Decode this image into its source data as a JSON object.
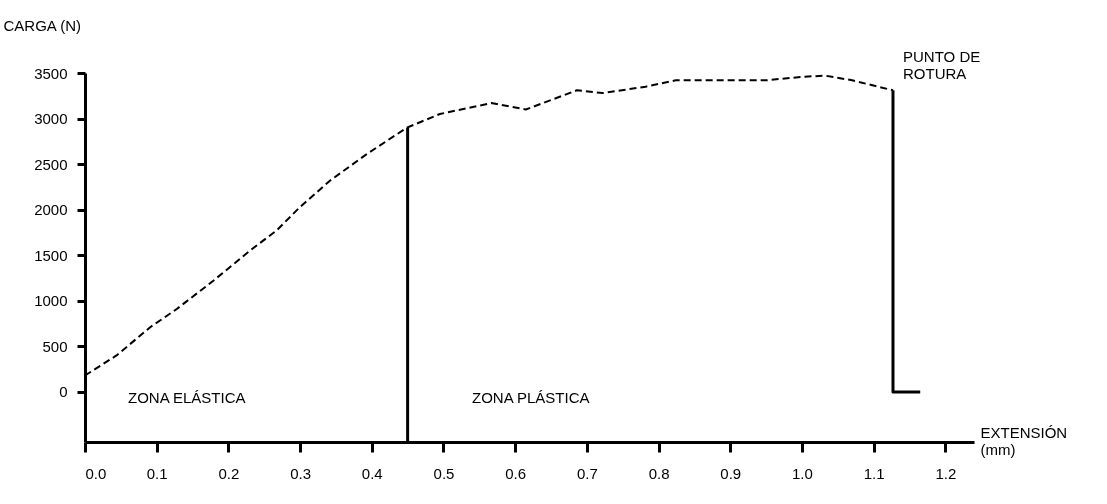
{
  "chart_data": {
    "type": "line",
    "xlabel": "EXTENSIÓN\n(mm)",
    "ylabel": "CARGA (N)",
    "xlim": [
      0,
      1.24
    ],
    "ylim": [
      -550,
      3500
    ],
    "xticks": [
      {
        "value": 0,
        "label": "0.0"
      },
      0.1,
      0.2,
      0.3,
      0.4,
      0.5,
      0.6,
      0.7,
      0.8,
      0.9,
      {
        "value": 1,
        "label": "1.0"
      },
      1.1,
      1.2
    ],
    "yticks": [
      0,
      500,
      1000,
      1500,
      2000,
      2500,
      3000,
      3500
    ],
    "grid": false,
    "marker": "none",
    "series": [
      {
        "color": "#000000",
        "line_style": "dashed",
        "x": [
          0,
          0.044,
          0.091,
          0.128,
          0.179,
          0.23,
          0.267,
          0.3,
          0.342,
          0.393,
          0.449,
          0.495,
          0.567,
          0.615,
          0.686,
          0.722,
          0.782,
          0.824,
          0.914,
          0.95,
          1.004,
          1.033,
          1.07,
          1.127
        ],
        "values": [
          180,
          400,
          710,
          910,
          1220,
          1550,
          1770,
          2030,
          2320,
          2610,
          2900,
          3050,
          3170,
          3100,
          3310,
          3280,
          3350,
          3420,
          3420,
          3420,
          3460,
          3470,
          3420,
          3310
        ]
      },
      {
        "color": "#000000",
        "line_style": "solid",
        "x": [
          1.127,
          1.127,
          1.165
        ],
        "values": [
          3310,
          0,
          0
        ]
      },
      {
        "color": "#000000",
        "line_style": "solid",
        "x": [
          0.45,
          0.45
        ],
        "values": [
          -550,
          2900
        ]
      }
    ],
    "annotations": [
      "ZONA ELÁSTICA",
      "ZONA PLÁSTICA",
      {
        "text": "PUNTO DE\nROTURA",
        "x": 1.127,
        "y": 3310
      }
    ]
  }
}
